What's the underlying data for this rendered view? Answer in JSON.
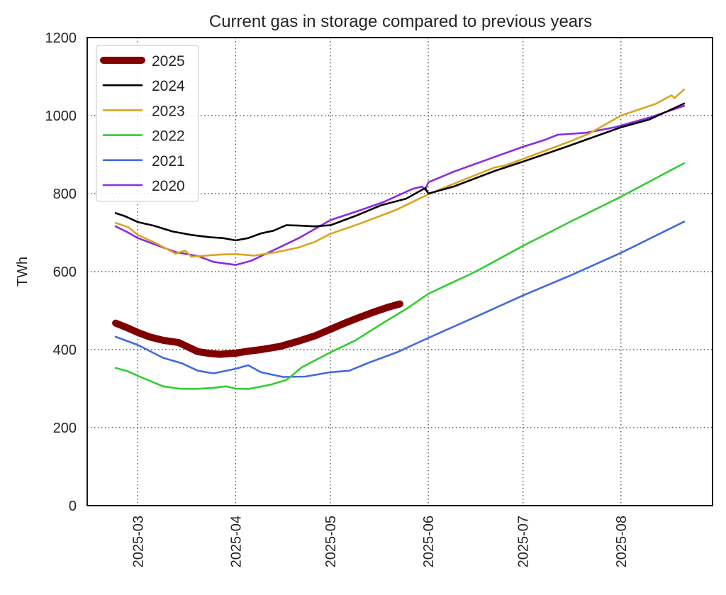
{
  "chart_data": {
    "type": "line",
    "title": "Current gas in storage compared to previous years",
    "xlabel": "",
    "ylabel": "TWh",
    "xlim": [
      "2025-02-13",
      "2025-08-30"
    ],
    "ylim": [
      0,
      1200
    ],
    "grid": true,
    "legend_position": "top-left",
    "x_ticks": [
      "2025-03",
      "2025-04",
      "2025-05",
      "2025-06",
      "2025-07",
      "2025-08"
    ],
    "y_ticks": [
      "0",
      "200",
      "400",
      "600",
      "800",
      "1000",
      "1200"
    ],
    "series": [
      {
        "name": "2025",
        "color": "#800000",
        "thick": true,
        "points": [
          [
            "2025-02-22",
            468
          ],
          [
            "2025-02-26",
            455
          ],
          [
            "2025-03-01",
            444
          ],
          [
            "2025-03-05",
            432
          ],
          [
            "2025-03-09",
            424
          ],
          [
            "2025-03-14",
            418
          ],
          [
            "2025-03-20",
            395
          ],
          [
            "2025-03-24",
            390
          ],
          [
            "2025-03-27",
            388
          ],
          [
            "2025-04-01",
            391
          ],
          [
            "2025-04-05",
            396
          ],
          [
            "2025-04-09",
            400
          ],
          [
            "2025-04-15",
            408
          ],
          [
            "2025-04-21",
            422
          ],
          [
            "2025-04-26",
            435
          ],
          [
            "2025-05-01",
            452
          ],
          [
            "2025-05-05",
            466
          ],
          [
            "2025-05-09",
            479
          ],
          [
            "2025-05-15",
            497
          ],
          [
            "2025-05-19",
            508
          ],
          [
            "2025-05-23",
            517
          ]
        ]
      },
      {
        "name": "2024",
        "color": "#000000",
        "thick": false,
        "points": [
          [
            "2025-02-22",
            750
          ],
          [
            "2025-02-25",
            742
          ],
          [
            "2025-03-01",
            727
          ],
          [
            "2025-03-06",
            718
          ],
          [
            "2025-03-12",
            703
          ],
          [
            "2025-03-18",
            694
          ],
          [
            "2025-03-24",
            688
          ],
          [
            "2025-03-28",
            686
          ],
          [
            "2025-04-01",
            680
          ],
          [
            "2025-04-05",
            686
          ],
          [
            "2025-04-09",
            698
          ],
          [
            "2025-04-13",
            705
          ],
          [
            "2025-04-17",
            719
          ],
          [
            "2025-04-21",
            718
          ],
          [
            "2025-04-26",
            716
          ],
          [
            "2025-05-01",
            719
          ],
          [
            "2025-05-09",
            743
          ],
          [
            "2025-05-17",
            770
          ],
          [
            "2025-05-25",
            787
          ],
          [
            "2025-05-31",
            814
          ],
          [
            "2025-06-01",
            800
          ],
          [
            "2025-06-09",
            818
          ],
          [
            "2025-06-22",
            858
          ],
          [
            "2025-07-01",
            882
          ],
          [
            "2025-07-15",
            921
          ],
          [
            "2025-08-01",
            970
          ],
          [
            "2025-08-10",
            990
          ],
          [
            "2025-08-21",
            1031
          ]
        ]
      },
      {
        "name": "2023",
        "color": "#DAA520",
        "thick": false,
        "points": [
          [
            "2025-02-22",
            725
          ],
          [
            "2025-02-26",
            714
          ],
          [
            "2025-03-01",
            694
          ],
          [
            "2025-03-07",
            672
          ],
          [
            "2025-03-13",
            646
          ],
          [
            "2025-03-16",
            654
          ],
          [
            "2025-03-18",
            638
          ],
          [
            "2025-03-24",
            642
          ],
          [
            "2025-03-28",
            644
          ],
          [
            "2025-04-01",
            645
          ],
          [
            "2025-04-07",
            641
          ],
          [
            "2025-04-14",
            650
          ],
          [
            "2025-04-21",
            662
          ],
          [
            "2025-04-26",
            676
          ],
          [
            "2025-05-01",
            697
          ],
          [
            "2025-05-11",
            725
          ],
          [
            "2025-05-22",
            759
          ],
          [
            "2025-06-01",
            798
          ],
          [
            "2025-06-09",
            825
          ],
          [
            "2025-06-22",
            867
          ],
          [
            "2025-06-25",
            871
          ],
          [
            "2025-07-01",
            889
          ],
          [
            "2025-07-15",
            931
          ],
          [
            "2025-07-22",
            954
          ],
          [
            "2025-08-01",
            1000
          ],
          [
            "2025-08-12",
            1030
          ],
          [
            "2025-08-17",
            1052
          ],
          [
            "2025-08-18",
            1045
          ],
          [
            "2025-08-21",
            1067
          ]
        ]
      },
      {
        "name": "2022",
        "color": "#32CD32",
        "thick": false,
        "points": [
          [
            "2025-02-22",
            353
          ],
          [
            "2025-02-26",
            344
          ],
          [
            "2025-03-01",
            333
          ],
          [
            "2025-03-09",
            306
          ],
          [
            "2025-03-14",
            300
          ],
          [
            "2025-03-19",
            299
          ],
          [
            "2025-03-25",
            302
          ],
          [
            "2025-03-29",
            306
          ],
          [
            "2025-04-01",
            300
          ],
          [
            "2025-04-05",
            299
          ],
          [
            "2025-04-12",
            310
          ],
          [
            "2025-04-17",
            322
          ],
          [
            "2025-04-18",
            328
          ],
          [
            "2025-04-22",
            355
          ],
          [
            "2025-05-01",
            393
          ],
          [
            "2025-05-09",
            424
          ],
          [
            "2025-05-18",
            470
          ],
          [
            "2025-05-25",
            504
          ],
          [
            "2025-06-01",
            543
          ],
          [
            "2025-06-16",
            600
          ],
          [
            "2025-07-01",
            666
          ],
          [
            "2025-07-16",
            728
          ],
          [
            "2025-08-01",
            792
          ],
          [
            "2025-08-21",
            878
          ]
        ]
      },
      {
        "name": "2021",
        "color": "#4169E1",
        "thick": false,
        "points": [
          [
            "2025-02-22",
            433
          ],
          [
            "2025-03-01",
            412
          ],
          [
            "2025-03-09",
            379
          ],
          [
            "2025-03-15",
            365
          ],
          [
            "2025-03-20",
            346
          ],
          [
            "2025-03-25",
            339
          ],
          [
            "2025-04-01",
            351
          ],
          [
            "2025-04-05",
            360
          ],
          [
            "2025-04-09",
            342
          ],
          [
            "2025-04-16",
            330
          ],
          [
            "2025-04-23",
            331
          ],
          [
            "2025-05-01",
            342
          ],
          [
            "2025-05-07",
            346
          ],
          [
            "2025-05-13",
            366
          ],
          [
            "2025-05-22",
            393
          ],
          [
            "2025-06-01",
            430
          ],
          [
            "2025-06-16",
            484
          ],
          [
            "2025-07-01",
            539
          ],
          [
            "2025-07-16",
            590
          ],
          [
            "2025-08-01",
            648
          ],
          [
            "2025-08-21",
            728
          ]
        ]
      },
      {
        "name": "2020",
        "color": "#8A2BE2",
        "thick": false,
        "points": [
          [
            "2025-02-22",
            716
          ],
          [
            "2025-02-26",
            700
          ],
          [
            "2025-03-01",
            686
          ],
          [
            "2025-03-07",
            668
          ],
          [
            "2025-03-13",
            650
          ],
          [
            "2025-03-20",
            640
          ],
          [
            "2025-03-25",
            625
          ],
          [
            "2025-04-01",
            617
          ],
          [
            "2025-04-06",
            628
          ],
          [
            "2025-04-13",
            655
          ],
          [
            "2025-04-21",
            686
          ],
          [
            "2025-05-01",
            732
          ],
          [
            "2025-05-11",
            759
          ],
          [
            "2025-05-18",
            779
          ],
          [
            "2025-05-27",
            812
          ],
          [
            "2025-05-30",
            818
          ],
          [
            "2025-05-31",
            810
          ],
          [
            "2025-06-01",
            829
          ],
          [
            "2025-06-09",
            856
          ],
          [
            "2025-06-22",
            894
          ],
          [
            "2025-07-01",
            920
          ],
          [
            "2025-07-08",
            938
          ],
          [
            "2025-07-12",
            951
          ],
          [
            "2025-07-21",
            956
          ],
          [
            "2025-07-30",
            970
          ],
          [
            "2025-08-10",
            995
          ],
          [
            "2025-08-21",
            1025
          ]
        ]
      }
    ]
  }
}
